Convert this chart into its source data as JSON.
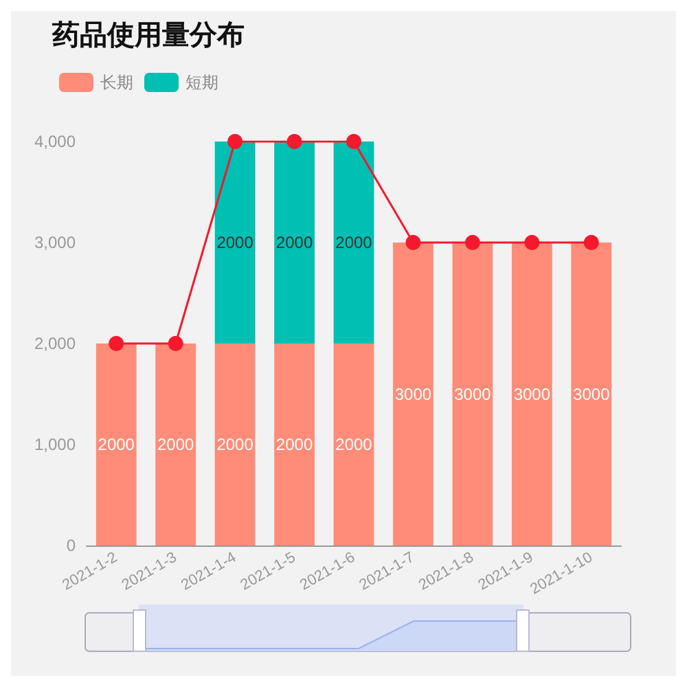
{
  "chart_data": {
    "type": "bar",
    "title": "药品使用量分布",
    "categories": [
      "2021-1-2",
      "2021-1-3",
      "2021-1-4",
      "2021-1-5",
      "2021-1-6",
      "2021-1-7",
      "2021-1-8",
      "2021-1-9",
      "2021-1-10"
    ],
    "stacked": true,
    "ylim": [
      0,
      4000
    ],
    "yticks": [
      {
        "value": 0,
        "label": "0"
      },
      {
        "value": 1000,
        "label": "1,000"
      },
      {
        "value": 2000,
        "label": "2,000"
      },
      {
        "value": 3000,
        "label": "3,000"
      },
      {
        "value": 4000,
        "label": "4,000"
      }
    ],
    "grid": false,
    "legend": "top left",
    "series": [
      {
        "name": "长期",
        "color": "#ff8c78",
        "values": [
          2000,
          2000,
          2000,
          2000,
          2000,
          3000,
          3000,
          3000,
          3000
        ],
        "value_labels": [
          "2000",
          "2000",
          "2000",
          "2000",
          "2000",
          "3000",
          "3000",
          "3000",
          "3000"
        ]
      },
      {
        "name": "短期",
        "color": "#00bfb3",
        "values": [
          null,
          null,
          2000,
          2000,
          2000,
          null,
          null,
          null,
          null
        ],
        "value_labels": [
          null,
          null,
          "2000",
          "2000",
          "2000",
          null,
          null,
          null,
          null
        ]
      },
      {
        "type": "line",
        "color": "#f5192e",
        "marker": "circle",
        "values": [
          2000,
          2000,
          4000,
          4000,
          4000,
          3000,
          3000,
          3000,
          3000
        ]
      }
    ]
  }
}
